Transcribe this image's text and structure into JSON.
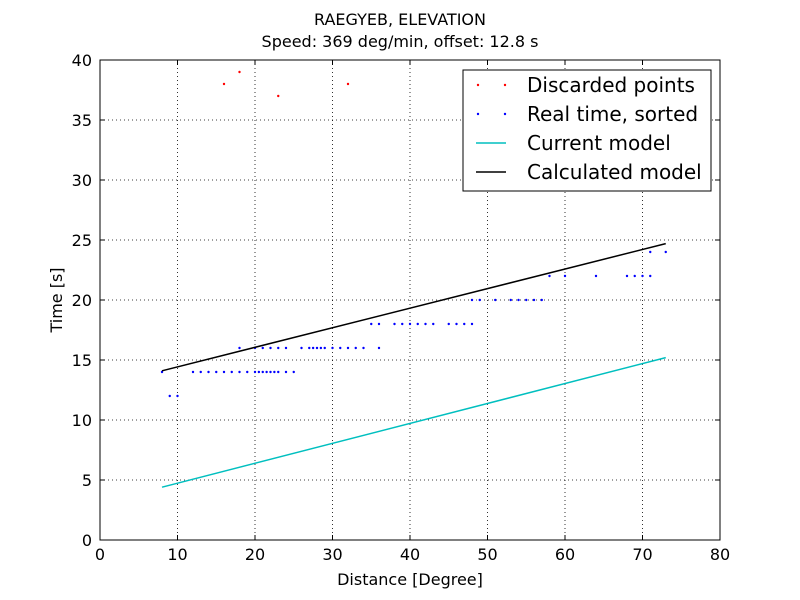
{
  "chart_data": {
    "type": "scatter",
    "title": "RAEGYEB, ELEVATION",
    "subtitle": "Speed: 369 deg/min, offset: 12.8 s",
    "xlabel": "Distance [Degree]",
    "ylabel": "Time [s]",
    "xlim": [
      0,
      80
    ],
    "ylim": [
      0,
      40
    ],
    "x_ticks": [
      0,
      10,
      20,
      30,
      40,
      50,
      60,
      70,
      80
    ],
    "y_ticks": [
      0,
      5,
      10,
      15,
      20,
      25,
      30,
      35,
      40
    ],
    "grid": true,
    "legend_position": "top-right",
    "series": [
      {
        "name": "Discarded points",
        "kind": "scatter",
        "color": "#ff0000",
        "points": [
          [
            16,
            38
          ],
          [
            18,
            39
          ],
          [
            23,
            37
          ],
          [
            32,
            38
          ]
        ]
      },
      {
        "name": "Real time, sorted",
        "kind": "scatter",
        "color": "#0000ff",
        "points": [
          [
            8,
            14
          ],
          [
            9,
            12
          ],
          [
            10,
            12
          ],
          [
            12,
            14
          ],
          [
            13,
            14
          ],
          [
            14,
            14
          ],
          [
            15,
            14
          ],
          [
            16,
            14
          ],
          [
            17,
            14
          ],
          [
            18,
            14
          ],
          [
            19,
            14
          ],
          [
            20,
            14
          ],
          [
            20.5,
            14
          ],
          [
            21,
            14
          ],
          [
            21.5,
            14
          ],
          [
            22,
            14
          ],
          [
            22.5,
            14
          ],
          [
            23,
            14
          ],
          [
            24,
            14
          ],
          [
            25,
            14
          ],
          [
            18,
            16
          ],
          [
            20,
            16
          ],
          [
            21,
            16
          ],
          [
            22,
            16
          ],
          [
            23,
            16
          ],
          [
            24,
            16
          ],
          [
            26,
            16
          ],
          [
            27,
            16
          ],
          [
            27.5,
            16
          ],
          [
            28,
            16
          ],
          [
            28.5,
            16
          ],
          [
            29,
            16
          ],
          [
            30,
            16
          ],
          [
            31,
            16
          ],
          [
            32,
            16
          ],
          [
            33,
            16
          ],
          [
            34,
            16
          ],
          [
            36,
            16
          ],
          [
            35,
            18
          ],
          [
            36,
            18
          ],
          [
            38,
            18
          ],
          [
            39,
            18
          ],
          [
            40,
            18
          ],
          [
            41,
            18
          ],
          [
            42,
            18
          ],
          [
            43,
            18
          ],
          [
            45,
            18
          ],
          [
            46,
            18
          ],
          [
            47,
            18
          ],
          [
            48,
            18
          ],
          [
            48,
            20
          ],
          [
            49,
            20
          ],
          [
            51,
            20
          ],
          [
            53,
            20
          ],
          [
            54,
            20
          ],
          [
            55,
            20
          ],
          [
            56,
            20
          ],
          [
            57,
            20
          ],
          [
            58,
            22
          ],
          [
            60,
            22
          ],
          [
            64,
            22
          ],
          [
            68,
            22
          ],
          [
            69,
            22
          ],
          [
            70,
            22
          ],
          [
            71,
            22
          ],
          [
            71,
            24
          ],
          [
            73,
            24
          ]
        ]
      },
      {
        "name": "Current model",
        "kind": "line",
        "color": "#00bfbf",
        "points": [
          [
            8,
            4.4
          ],
          [
            73,
            15.2
          ]
        ]
      },
      {
        "name": "Calculated model",
        "kind": "line",
        "color": "#000000",
        "points": [
          [
            8,
            14.1
          ],
          [
            73,
            24.7
          ]
        ]
      }
    ]
  }
}
